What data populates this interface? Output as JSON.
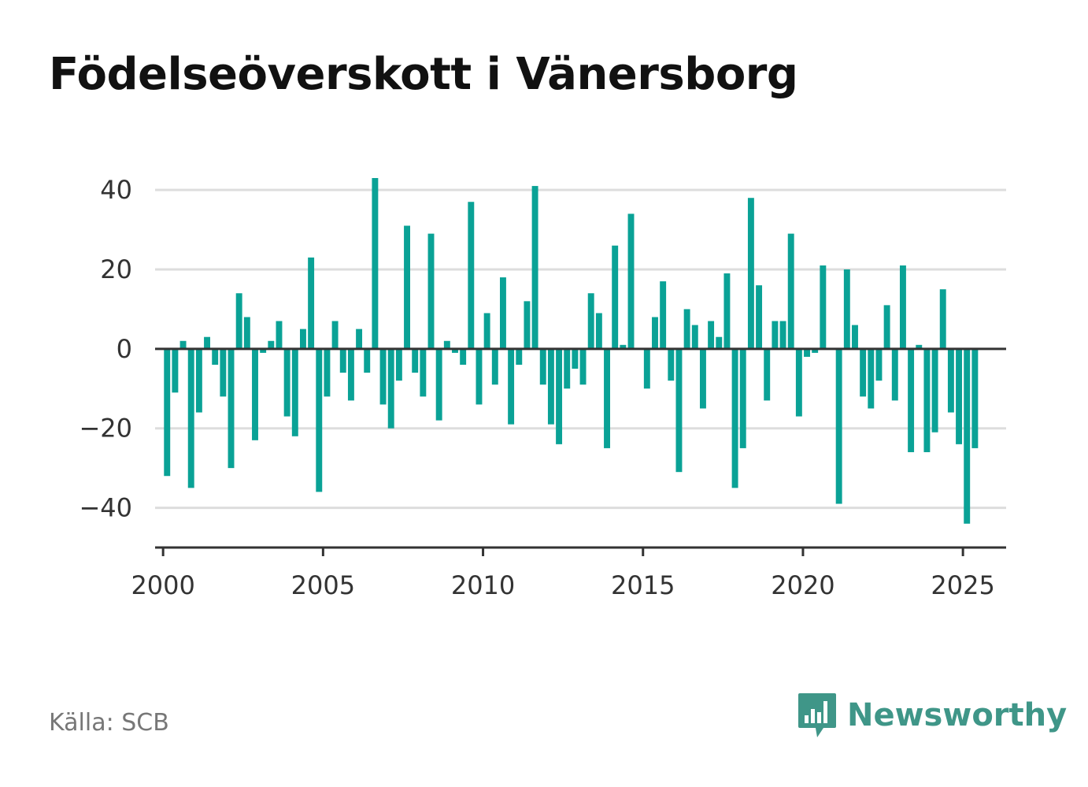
{
  "title": "Födelseöverskott i Vänersborg",
  "source": "Källa: SCB",
  "brand": {
    "name": "Newsworthy",
    "icon": "bar-chart-speech-bubble-icon"
  },
  "colors": {
    "bar": "#0aa296",
    "axis": "#333333",
    "grid": "#dddddd",
    "brand": "#3f9688"
  },
  "chart_data": {
    "type": "bar",
    "title": "Födelseöverskott i Vänersborg",
    "xlabel": "",
    "ylabel": "",
    "ylim": [
      -50,
      43
    ],
    "xlim": [
      1999.75,
      2026.35
    ],
    "yticks": [
      -40,
      -20,
      0,
      20,
      40
    ],
    "ytick_labels": [
      "−40",
      "−20",
      "0",
      "20",
      "40"
    ],
    "xticks": [
      2000,
      2005,
      2010,
      2015,
      2020,
      2025
    ],
    "xtick_labels": [
      "2000",
      "2005",
      "2010",
      "2015",
      "2020",
      "2025"
    ],
    "grid": true,
    "legend": "none",
    "start_month": "2000-01",
    "frequency": "quarterly",
    "values": [
      -32,
      -11,
      2,
      -35,
      -16,
      3,
      -4,
      -12,
      -30,
      14,
      8,
      -23,
      -1,
      2,
      7,
      -17,
      -22,
      5,
      23,
      -36,
      -12,
      7,
      -6,
      -13,
      5,
      -6,
      43,
      -14,
      -20,
      -8,
      31,
      -6,
      -12,
      29,
      -18,
      2,
      -1,
      -4,
      37,
      -14,
      9,
      -9,
      18,
      -19,
      -4,
      12,
      41,
      -9,
      -19,
      -24,
      -10,
      -5,
      -9,
      14,
      9,
      -25,
      26,
      1,
      34,
      0,
      -10,
      8,
      17,
      -8,
      -31,
      10,
      6,
      -15,
      7,
      3,
      19,
      -35,
      -25,
      38,
      16,
      -13,
      7,
      7,
      29,
      -17,
      -2,
      -1,
      21,
      0,
      -39,
      20,
      6,
      -12,
      -15,
      -8,
      11,
      -13,
      21,
      -26,
      1,
      -26,
      -21,
      15,
      -16,
      -24,
      -44,
      -25
    ]
  }
}
